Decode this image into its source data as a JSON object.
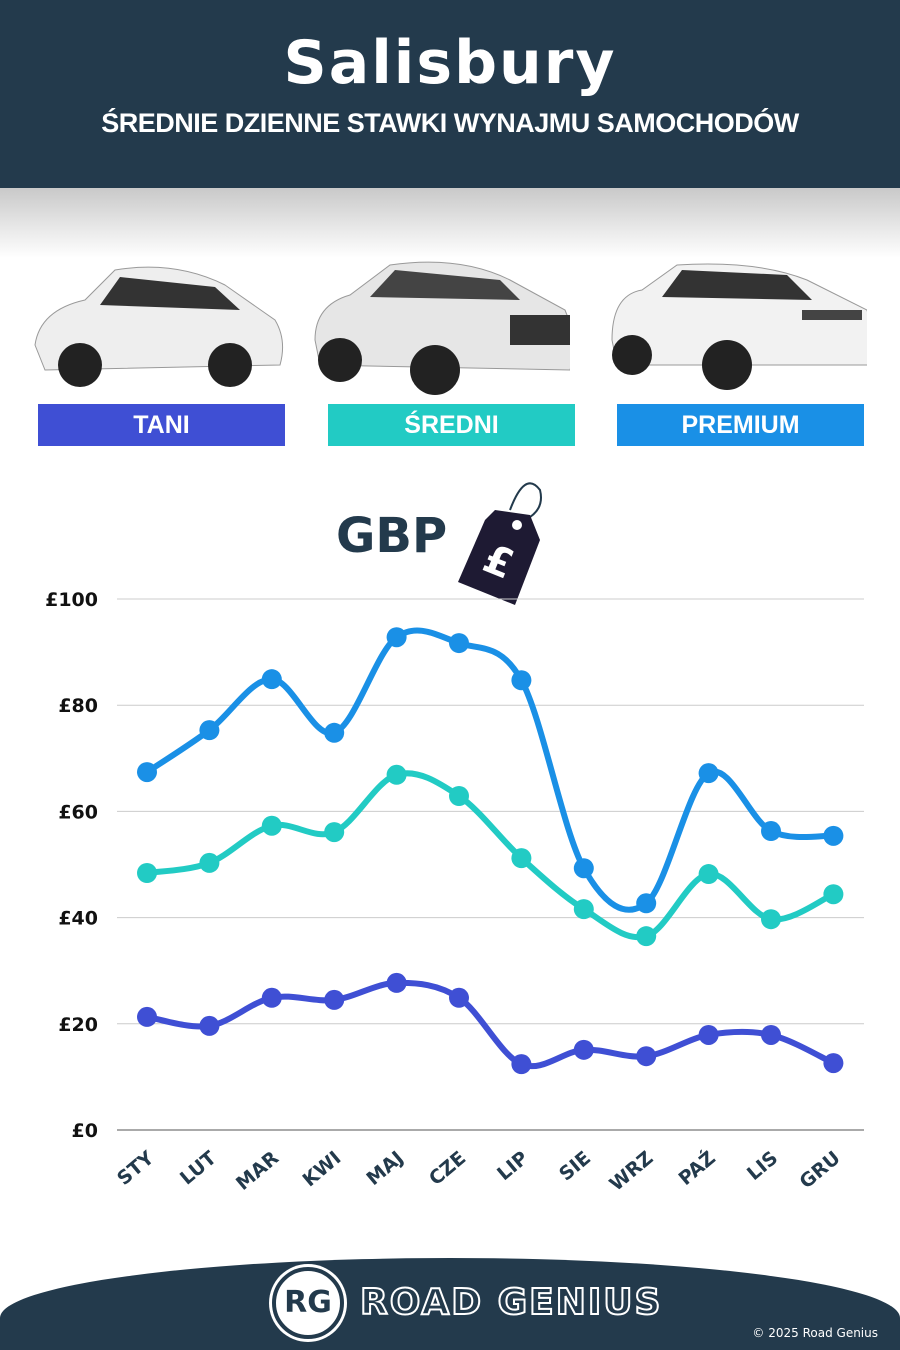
{
  "header": {
    "title": "Salisbury",
    "subtitle": "ŚREDNIE DZIENNE STAWKI WYNAJMU SAMOCHODÓW"
  },
  "categories": [
    {
      "label": "TANI",
      "color": "#3f4fd4"
    },
    {
      "label": "ŚREDNI",
      "color": "#22cbc4"
    },
    {
      "label": "PREMIUM",
      "color": "#1a90e6"
    }
  ],
  "currency": {
    "label": "GBP",
    "symbol": "£"
  },
  "chart_data": {
    "type": "line",
    "categories": [
      "STY",
      "LUT",
      "MAR",
      "KWI",
      "MAJ",
      "CZE",
      "LIP",
      "SIE",
      "WRZ",
      "PAŹ",
      "LIS",
      "GRU"
    ],
    "ylim": [
      0,
      100
    ],
    "yticks": [
      "£0",
      "£20",
      "£40",
      "£60",
      "£80",
      "£100"
    ],
    "grid": true,
    "series": [
      {
        "name": "TANI",
        "color": "#3f4fd4",
        "values": [
          21.3,
          19.6,
          24.9,
          24.5,
          27.7,
          24.9,
          12.4,
          15.1,
          13.9,
          17.9,
          17.9,
          12.6
        ]
      },
      {
        "name": "ŚREDNI",
        "color": "#22cbc4",
        "values": [
          48.4,
          50.3,
          57.3,
          56.1,
          66.9,
          62.9,
          51.2,
          41.6,
          36.5,
          48.2,
          39.7,
          44.4
        ]
      },
      {
        "name": "PREMIUM",
        "color": "#1a90e6",
        "values": [
          67.4,
          75.3,
          84.9,
          74.8,
          92.8,
          91.7,
          84.7,
          49.3,
          42.7,
          67.2,
          56.3,
          55.4
        ]
      }
    ]
  },
  "footer": {
    "logo": "RG",
    "brand": "ROAD GENIUS",
    "copyright": "© 2025 Road Genius"
  }
}
